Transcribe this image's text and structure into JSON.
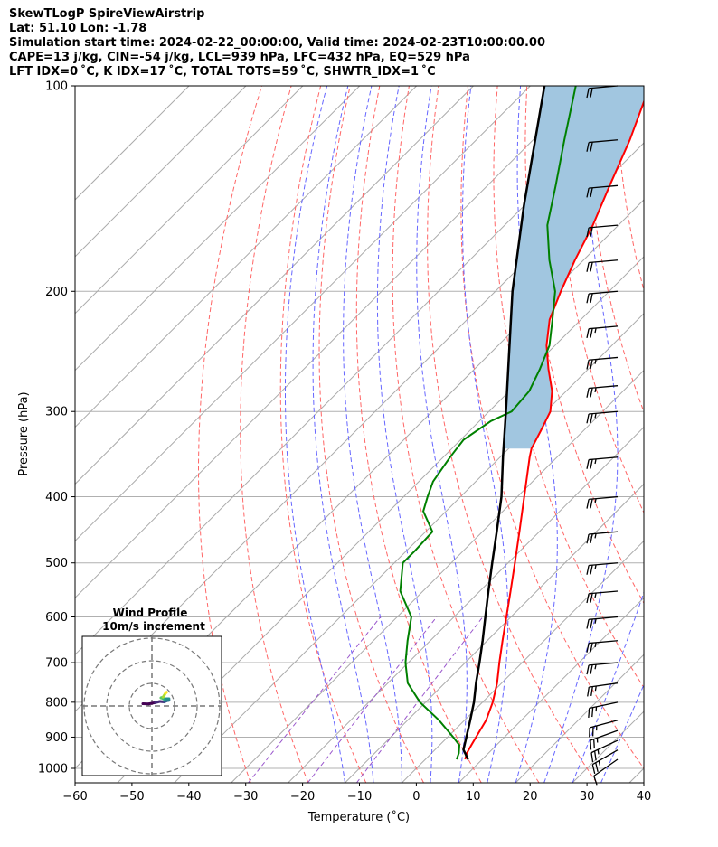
{
  "header": {
    "line1": "SkewTLogP SpireViewAirstrip",
    "line2": "Lat: 51.10   Lon: -1.78",
    "line3": "Simulation start time: 2024-02-22_00:00:00, Valid time: 2024-02-23T10:00:00.00",
    "line4": "CAPE=13 j/kg, CIN=-54 j/kg, LCL=939 hPa, LFC=432 hPa, EQ=529 hPa",
    "line5": "LFT IDX=0 ˚C, K IDX=17 ˚C, TOTAL TOTS=59 ˚C, SHWTR_IDX=1 ˚C"
  },
  "chart_data": {
    "type": "line",
    "subtype": "skew-t log-p",
    "xlabel": "Temperature (˚C)",
    "ylabel": "Pressure (hPa)",
    "xlim": [
      -60,
      40
    ],
    "ylim": [
      1050,
      100
    ],
    "y_scale": "log",
    "grid": true,
    "x_ticks": [
      -60,
      -50,
      -40,
      -30,
      -20,
      -10,
      0,
      10,
      20,
      30,
      40
    ],
    "y_ticks": [
      1000,
      900,
      800,
      700,
      600,
      500,
      400,
      300,
      200,
      100
    ],
    "colors": {
      "temperature": "#ff0000",
      "dewpoint": "#008000",
      "parcel": "#000000",
      "cape_fill": "#a1c6e0",
      "dry_adiabat": "#ff6666",
      "moist_adiabat": "#6666ff",
      "mixing_ratio": "#9955cc",
      "isotherm": "#aaaaaa"
    },
    "series": [
      {
        "key": "temperature",
        "p": [
          970,
          950,
          925,
          900,
          850,
          800,
          750,
          700,
          650,
          600,
          550,
          500,
          450,
          400,
          350,
          340,
          320,
          300,
          280,
          260,
          240,
          220,
          200,
          180,
          160,
          140,
          120,
          100
        ],
        "t": [
          7.0,
          6.2,
          5.6,
          5.0,
          3.8,
          1.8,
          -0.8,
          -4.0,
          -7.3,
          -10.8,
          -14.6,
          -18.8,
          -23.5,
          -28.8,
          -34.8,
          -36.0,
          -37.5,
          -39.2,
          -42.5,
          -47.0,
          -51.5,
          -55.5,
          -58.5,
          -61.5,
          -64.5,
          -68.5,
          -73.0,
          -79.0
        ]
      },
      {
        "key": "dewpoint",
        "p": [
          970,
          950,
          925,
          900,
          850,
          800,
          750,
          700,
          650,
          600,
          550,
          500,
          480,
          450,
          420,
          400,
          380,
          350,
          330,
          310,
          300,
          280,
          260,
          240,
          220,
          200,
          180,
          160,
          140,
          120,
          100
        ],
        "t": [
          5.5,
          4.8,
          3.5,
          1.0,
          -4.5,
          -11.0,
          -16.5,
          -20.5,
          -24.0,
          -27.5,
          -34.0,
          -38.5,
          -38.5,
          -38.8,
          -44.0,
          -45.8,
          -47.5,
          -48.8,
          -49.5,
          -48.0,
          -46.0,
          -46.5,
          -48.5,
          -51.0,
          -55.0,
          -59.5,
          -66.0,
          -72.5,
          -78.0,
          -84.5,
          -92.0
        ]
      },
      {
        "key": "parcel",
        "p": [
          970,
          939,
          900,
          850,
          800,
          750,
          700,
          650,
          600,
          550,
          500,
          450,
          400,
          350,
          300,
          250,
          200,
          150,
          100
        ],
        "t": [
          7.5,
          5.0,
          3.3,
          1.0,
          -1.5,
          -4.5,
          -7.5,
          -10.8,
          -14.5,
          -18.5,
          -22.8,
          -27.5,
          -32.8,
          -39.5,
          -47.0,
          -56.0,
          -67.0,
          -80.0,
          -97.5
        ]
      }
    ],
    "cape_region": "shaded between temperature and parcel from ~340 hPa to 100 hPa",
    "wind_barbs": {
      "p": [
        970,
        940,
        910,
        880,
        850,
        800,
        750,
        700,
        650,
        600,
        550,
        500,
        450,
        400,
        350,
        300,
        275,
        250,
        225,
        200,
        180,
        160,
        140,
        120,
        100
      ],
      "direction_deg": [
        235,
        240,
        245,
        250,
        255,
        258,
        262,
        265,
        265,
        265,
        265,
        265,
        265,
        265,
        265,
        265,
        265,
        265,
        265,
        265,
        265,
        265,
        265,
        265,
        265
      ],
      "speed_kt": [
        10,
        15,
        15,
        15,
        15,
        15,
        15,
        15,
        15,
        15,
        15,
        15,
        15,
        15,
        15,
        15,
        15,
        15,
        15,
        20,
        20,
        20,
        20,
        20,
        20
      ]
    },
    "hodograph": {
      "title": "Wind Profile",
      "subtitle": "10m/s increment",
      "rings": 3,
      "u": [
        -4,
        -1.5,
        1.5,
        3.5,
        5.5,
        6.5,
        7.5,
        7.5,
        6.5,
        5.5,
        4.5,
        4.0,
        5.0,
        5.5,
        6.0,
        6.5
      ],
      "v": [
        1.0,
        0.9,
        1.5,
        2.0,
        1.8,
        2.3,
        2.5,
        3.2,
        3.2,
        3.0,
        3.5,
        3.6,
        4.0,
        4.8,
        5.6,
        6.1
      ]
    }
  }
}
